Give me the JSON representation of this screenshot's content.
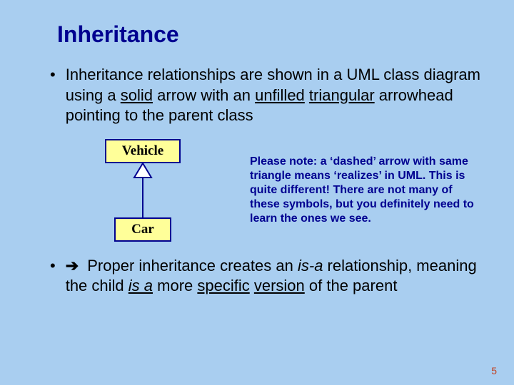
{
  "background_color": "#a9cef0",
  "title": {
    "text": "Inheritance",
    "color": "#000090"
  },
  "bullet1": {
    "pre": "Inheritance relationships are shown in a UML class diagram using a ",
    "u1": "solid",
    "mid1": " arrow with an ",
    "u2": "unfilled",
    "mid2": " ",
    "u3": "triangular",
    "post": " arrowhead pointing to the parent class"
  },
  "diagram": {
    "parent_label": "Vehicle",
    "child_label": "Car",
    "box_border_color": "#000090",
    "box_bg_color": "#ffff99",
    "arrow_color": "#000090",
    "arrow_fill": "#ffffff",
    "triangle_width": 24,
    "triangle_height": 20,
    "line_length": 56
  },
  "note": {
    "text": "Please note:  a ‘dashed’ arrow with same triangle means ‘realizes’ in UML.  This is quite different!  There are not many of these symbols, but you definitely need to learn the ones we see.",
    "color": "#000090"
  },
  "bullet2": {
    "arrow_glyph": "➔",
    "pre": " Proper inheritance creates an ",
    "i1": "is-a",
    "mid1": " relationship, meaning the child ",
    "ui": "is a",
    "mid2": " more ",
    "u1": "specific",
    "mid3": " ",
    "u2": "version",
    "post": " of the parent"
  },
  "page_number": {
    "text": "5",
    "color": "#c04020"
  }
}
